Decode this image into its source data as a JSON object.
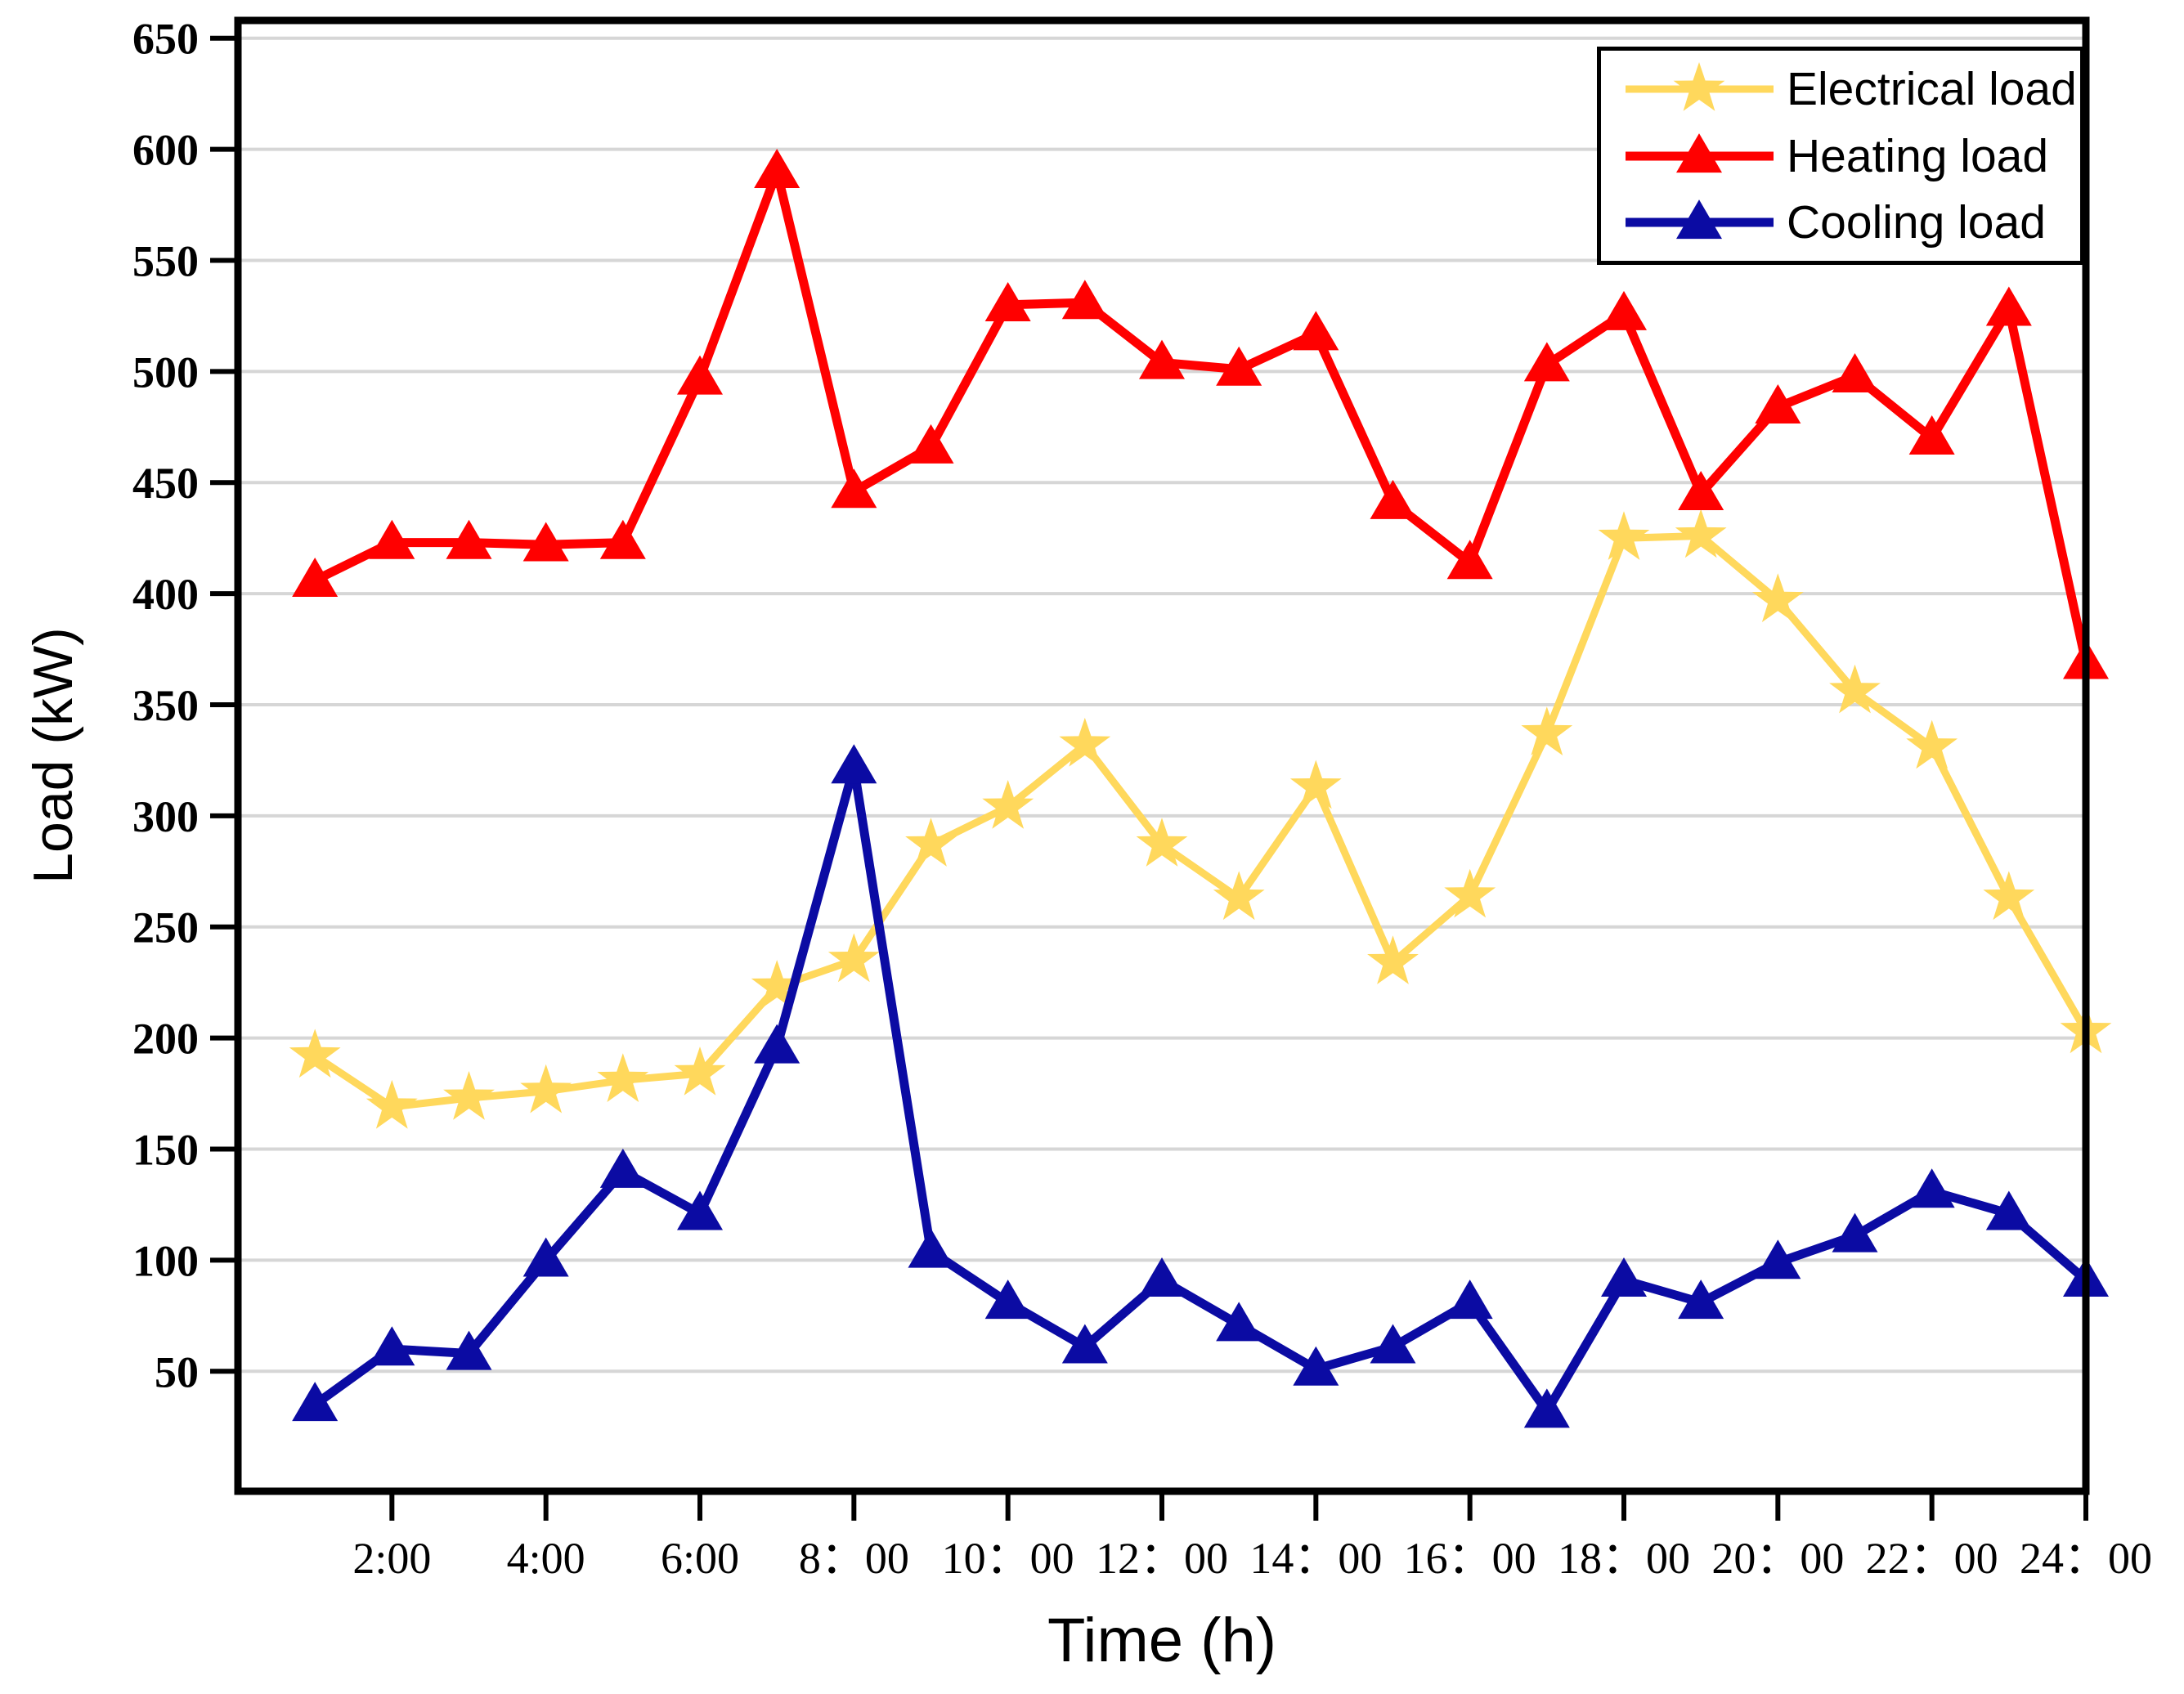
{
  "figure": {
    "background": "#FFFFFF",
    "frame_color": "#000000",
    "grid_color": "#D6D6D6"
  },
  "chart_data": {
    "type": "line",
    "title": "",
    "xlabel": "Time  (h)",
    "ylabel": "Load (kW)",
    "x": [
      1,
      2,
      3,
      4,
      5,
      6,
      7,
      8,
      9,
      10,
      11,
      12,
      13,
      14,
      15,
      16,
      17,
      18,
      19,
      20,
      21,
      22,
      23,
      24
    ],
    "xlim": [
      0,
      24
    ],
    "ylim": [
      0,
      650
    ],
    "x_tick_hours": [
      2,
      4,
      6,
      8,
      10,
      12,
      14,
      16,
      18,
      20,
      22,
      24
    ],
    "x_tick_labels": [
      "2:00",
      "4:00",
      "6:00",
      "8：00",
      "10：00",
      "12：00",
      "14：00",
      "16：00",
      "18：00",
      "20：00",
      "22：00",
      "24：00"
    ],
    "y_ticks": [
      50,
      100,
      150,
      200,
      250,
      300,
      350,
      400,
      450,
      500,
      550,
      600,
      650
    ],
    "grid": "horizontal",
    "legend_position": "top-right",
    "series": [
      {
        "name": "Electrical load",
        "color": "#FFD85C",
        "marker": "star",
        "values": [
          192,
          169,
          173,
          176,
          181,
          184,
          223,
          235,
          287,
          304,
          332,
          287,
          263,
          313,
          234,
          264,
          337,
          425,
          426,
          397,
          356,
          331,
          263,
          203
        ]
      },
      {
        "name": "Heating load",
        "color": "#FF0000",
        "marker": "triangle",
        "values": [
          406,
          423,
          423,
          422,
          423,
          497,
          590,
          446,
          466,
          530,
          531,
          504,
          501,
          517,
          441,
          414,
          503,
          526,
          445,
          484,
          498,
          470,
          528,
          369
        ]
      },
      {
        "name": "Cooling load",
        "color": "#0B0BA3",
        "marker": "triangle",
        "values": [
          35,
          60,
          58,
          100,
          140,
          121,
          196,
          322,
          104,
          81,
          61,
          91,
          71,
          51,
          61,
          81,
          32,
          91,
          81,
          99,
          111,
          131,
          121,
          91
        ]
      }
    ]
  }
}
